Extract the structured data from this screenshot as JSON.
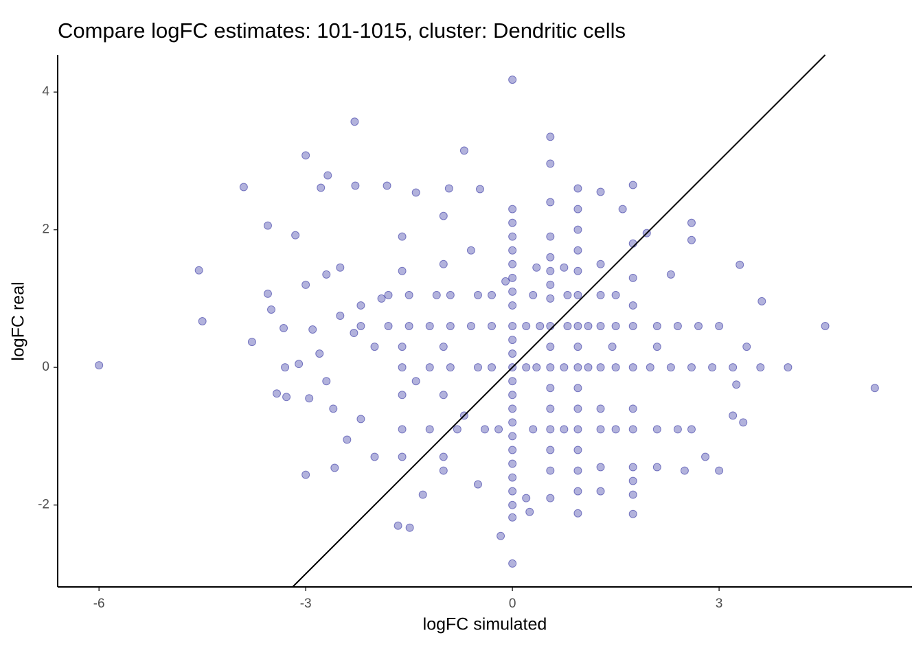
{
  "chart_data": {
    "type": "scatter",
    "title": "Compare logFC estimates: 101-1015, cluster: Dendritic cells",
    "x_label": "logFC simulated",
    "y_label": "logFC real",
    "color": "#00008b",
    "identity_line": true,
    "grid": false,
    "xlim": [
      -6.6,
      5.8
    ],
    "ylim": [
      -3.19,
      4.54
    ],
    "xticks": [
      -6,
      -3,
      0,
      3
    ],
    "yticks": [
      -2,
      0,
      2,
      4
    ],
    "x": [
      -6.0,
      -4.5,
      -4.55,
      -3.9,
      -3.0,
      -2.29,
      0,
      0.55,
      -0.7,
      5.26,
      4.54,
      4.0,
      3.62,
      3.3,
      0,
      -1.49,
      -1.66,
      -0.17,
      -3.0,
      -2.58,
      1.75,
      0.95,
      -3.55,
      -3.5,
      -3.78,
      -3.42,
      -3.28,
      -3.32,
      -3.55,
      -3.15,
      -2.68,
      -2.78,
      -2.28,
      -1.82,
      -1.4,
      -0.92,
      -0.47,
      0.55,
      0,
      0,
      0,
      0,
      0,
      0,
      0,
      0,
      0,
      0,
      0,
      0,
      0,
      0,
      0,
      0,
      0,
      0,
      0,
      0,
      0,
      0,
      0,
      0.55,
      0.55,
      0.55,
      0.55,
      0.55,
      0.55,
      0.55,
      0.55,
      0.55,
      0.55,
      0.55,
      0.55,
      0.55,
      0.55,
      0.55,
      0.95,
      0.95,
      0.95,
      0.95,
      0.95,
      0.95,
      0.95,
      0.95,
      0.95,
      0.95,
      0.95,
      0.95,
      0.95,
      0.95,
      0.95,
      1.28,
      1.28,
      1.28,
      1.28,
      1.28,
      1.28,
      1.28,
      1.28,
      1.28,
      1.75,
      1.75,
      1.75,
      1.75,
      1.75,
      1.75,
      1.75,
      1.75,
      1.75,
      1.75,
      1.75,
      -1.6,
      -1.2,
      -0.9,
      -0.5,
      -0.3,
      0.2,
      0.35,
      0.75,
      1.1,
      1.5,
      2.0,
      2.3,
      2.6,
      2.9,
      3.2,
      3.6,
      -2.2,
      -1.8,
      -1.5,
      -1.2,
      -0.9,
      -0.6,
      -0.3,
      0.2,
      0.4,
      0.8,
      1.1,
      1.5,
      2.1,
      2.4,
      2.7,
      3.0,
      -1.8,
      -1.5,
      -1.1,
      -0.9,
      -0.5,
      -0.3,
      0.3,
      0.8,
      1.5,
      -1.6,
      -1.2,
      -0.8,
      -0.4,
      -0.2,
      0.3,
      0.75,
      1.5,
      2.1,
      2.4,
      2.6,
      -1.6,
      -1.6,
      -1.6,
      -1.6,
      -1.6,
      -1.0,
      -1.0,
      -1.0,
      -1.0,
      -1.0,
      -1.0,
      -2.5,
      -2.2,
      -2.8,
      -2.6,
      -2.2,
      -2.0,
      -2.4,
      -1.3,
      -0.5,
      0.2,
      0.25,
      2.1,
      2.5,
      3.0,
      2.8,
      3.35,
      3.2,
      2.3,
      2.6,
      2.6,
      1.95,
      1.6,
      -3.1,
      -2.9,
      -3.3,
      -2.95,
      -2.7,
      -3.0,
      -2.7,
      3.4,
      3.25,
      2.1,
      -0.6,
      -0.1,
      0.35,
      0.75,
      1.45,
      -0.7,
      -1.4,
      -2.0,
      -1.9,
      -2.5,
      -2.3
    ],
    "y": [
      0.03,
      0.67,
      1.41,
      2.62,
      3.08,
      3.57,
      4.18,
      3.35,
      3.15,
      -0.3,
      0.6,
      0,
      0.96,
      1.49,
      -2.85,
      -2.33,
      -2.3,
      -2.45,
      -1.56,
      -1.46,
      -2.13,
      -2.12,
      1.07,
      0.84,
      0.37,
      -0.38,
      -0.43,
      0.57,
      2.06,
      1.92,
      2.79,
      2.61,
      2.64,
      2.64,
      2.54,
      2.6,
      2.59,
      2.96,
      2.3,
      2.1,
      1.9,
      1.7,
      1.5,
      1.3,
      1.1,
      0.9,
      0.6,
      0.4,
      0.2,
      0,
      -0.2,
      -0.4,
      -0.6,
      -0.8,
      -1.0,
      -1.2,
      -1.4,
      -1.6,
      -1.8,
      -2.0,
      -2.18,
      2.4,
      1.9,
      1.6,
      1.4,
      1.2,
      1.0,
      0.6,
      0.3,
      0,
      -0.3,
      -0.6,
      -0.9,
      -1.2,
      -1.5,
      -1.9,
      2.6,
      2.3,
      2.0,
      1.7,
      1.4,
      1.05,
      0.6,
      0.3,
      0,
      -0.3,
      -0.6,
      -0.9,
      -1.2,
      -1.5,
      -1.8,
      2.55,
      1.5,
      1.05,
      0.6,
      0,
      -0.6,
      -0.9,
      -1.45,
      -1.8,
      2.65,
      1.8,
      1.3,
      0.9,
      0.6,
      0,
      -0.6,
      -0.9,
      -1.45,
      -1.85,
      -1.65,
      0,
      0,
      0,
      0,
      0,
      0,
      0,
      0,
      0,
      0,
      0,
      0,
      0,
      0,
      0,
      0,
      0.6,
      0.6,
      0.6,
      0.6,
      0.6,
      0.6,
      0.6,
      0.6,
      0.6,
      0.6,
      0.6,
      0.6,
      0.6,
      0.6,
      0.6,
      0.6,
      1.05,
      1.05,
      1.05,
      1.05,
      1.05,
      1.05,
      1.05,
      1.05,
      1.05,
      -0.9,
      -0.9,
      -0.9,
      -0.9,
      -0.9,
      -0.9,
      -0.9,
      -0.9,
      -0.9,
      -0.9,
      -0.9,
      1.9,
      1.4,
      0.3,
      -0.4,
      -1.3,
      2.2,
      1.5,
      0.3,
      -0.4,
      -1.3,
      -1.5,
      1.45,
      0.9,
      0.2,
      -0.6,
      -0.75,
      -1.3,
      -1.05,
      -1.85,
      -1.7,
      -1.9,
      -2.1,
      -1.45,
      -1.5,
      -1.5,
      -1.3,
      -0.8,
      -0.7,
      1.35,
      1.85,
      2.1,
      1.95,
      2.3,
      0.05,
      0.55,
      0.0,
      -0.45,
      -0.2,
      1.2,
      1.35,
      0.3,
      -0.25,
      0.3,
      1.7,
      1.25,
      1.45,
      1.45,
      0.3,
      -0.7,
      -0.2,
      0.3,
      1.0,
      0.75,
      0.5
    ]
  }
}
